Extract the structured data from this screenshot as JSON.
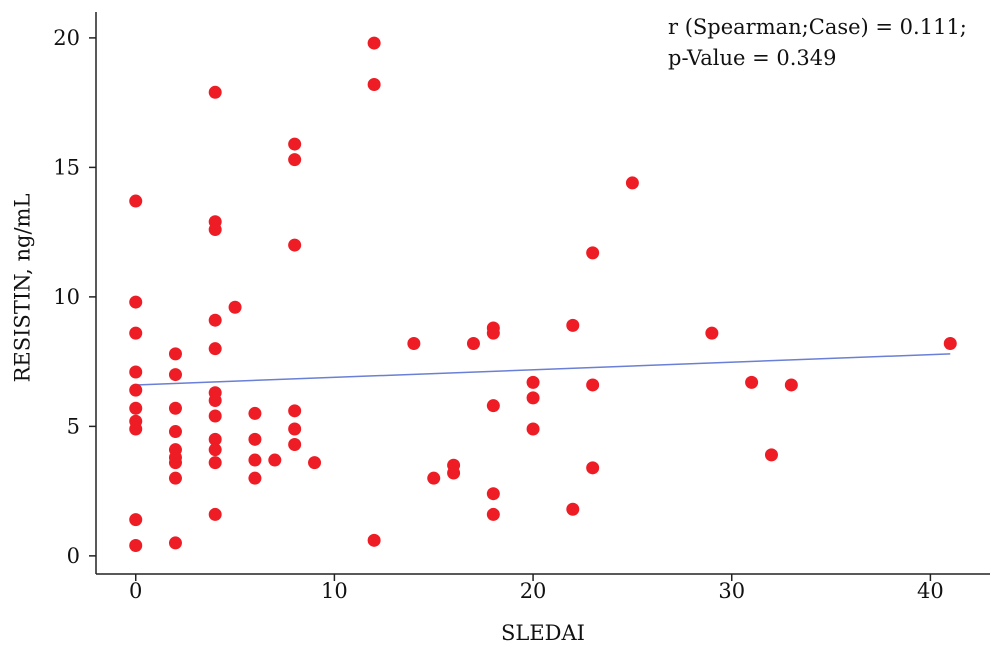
{
  "chart_data": {
    "type": "scatter",
    "xlabel": "SLEDAI",
    "ylabel": "RESISTIN, ng/mL",
    "xlim": [
      -2,
      43
    ],
    "ylim": [
      -0.7,
      21
    ],
    "xticks": [
      0,
      10,
      20,
      30,
      40
    ],
    "yticks": [
      0,
      5,
      10,
      15,
      20
    ],
    "annotations": [
      "r (Spearman;Case) = 0.111;",
      "p-Value = 0.349"
    ],
    "annotation_position": "top-right",
    "grid": false,
    "point_color": "#ee1c24",
    "fit_line_color": "#6a7fd6",
    "fit_line": {
      "x": [
        0,
        41
      ],
      "y": [
        6.6,
        7.8
      ]
    },
    "points": [
      {
        "x": 0,
        "y": 13.7
      },
      {
        "x": 0,
        "y": 9.8
      },
      {
        "x": 0,
        "y": 8.6
      },
      {
        "x": 0,
        "y": 7.1
      },
      {
        "x": 0,
        "y": 6.4
      },
      {
        "x": 0,
        "y": 5.7
      },
      {
        "x": 0,
        "y": 5.2
      },
      {
        "x": 0,
        "y": 4.9
      },
      {
        "x": 0,
        "y": 1.4
      },
      {
        "x": 0,
        "y": 0.4
      },
      {
        "x": 2,
        "y": 7.8
      },
      {
        "x": 2,
        "y": 7.0
      },
      {
        "x": 2,
        "y": 5.7
      },
      {
        "x": 2,
        "y": 4.8
      },
      {
        "x": 2,
        "y": 4.1
      },
      {
        "x": 2,
        "y": 3.8
      },
      {
        "x": 2,
        "y": 3.6
      },
      {
        "x": 2,
        "y": 3.0
      },
      {
        "x": 2,
        "y": 0.5
      },
      {
        "x": 4,
        "y": 17.9
      },
      {
        "x": 4,
        "y": 12.9
      },
      {
        "x": 4,
        "y": 12.6
      },
      {
        "x": 4,
        "y": 9.1
      },
      {
        "x": 4,
        "y": 8.0
      },
      {
        "x": 4,
        "y": 6.3
      },
      {
        "x": 4,
        "y": 6.0
      },
      {
        "x": 4,
        "y": 5.4
      },
      {
        "x": 4,
        "y": 4.5
      },
      {
        "x": 4,
        "y": 4.1
      },
      {
        "x": 4,
        "y": 3.6
      },
      {
        "x": 4,
        "y": 1.6
      },
      {
        "x": 5,
        "y": 9.6
      },
      {
        "x": 6,
        "y": 5.5
      },
      {
        "x": 6,
        "y": 4.5
      },
      {
        "x": 6,
        "y": 3.7
      },
      {
        "x": 6,
        "y": 3.0
      },
      {
        "x": 7,
        "y": 3.7
      },
      {
        "x": 8,
        "y": 15.9
      },
      {
        "x": 8,
        "y": 15.3
      },
      {
        "x": 8,
        "y": 12.0
      },
      {
        "x": 8,
        "y": 5.6
      },
      {
        "x": 8,
        "y": 4.9
      },
      {
        "x": 8,
        "y": 4.3
      },
      {
        "x": 9,
        "y": 3.6
      },
      {
        "x": 12,
        "y": 19.8
      },
      {
        "x": 12,
        "y": 18.2
      },
      {
        "x": 12,
        "y": 0.6
      },
      {
        "x": 14,
        "y": 8.2
      },
      {
        "x": 15,
        "y": 3.0
      },
      {
        "x": 16,
        "y": 3.5
      },
      {
        "x": 16,
        "y": 3.2
      },
      {
        "x": 17,
        "y": 8.2
      },
      {
        "x": 18,
        "y": 8.8
      },
      {
        "x": 18,
        "y": 8.6
      },
      {
        "x": 18,
        "y": 5.8
      },
      {
        "x": 18,
        "y": 2.4
      },
      {
        "x": 18,
        "y": 1.6
      },
      {
        "x": 20,
        "y": 6.7
      },
      {
        "x": 20,
        "y": 6.1
      },
      {
        "x": 20,
        "y": 4.9
      },
      {
        "x": 22,
        "y": 8.9
      },
      {
        "x": 22,
        "y": 1.8
      },
      {
        "x": 23,
        "y": 11.7
      },
      {
        "x": 23,
        "y": 6.6
      },
      {
        "x": 23,
        "y": 3.4
      },
      {
        "x": 25,
        "y": 14.4
      },
      {
        "x": 29,
        "y": 8.6
      },
      {
        "x": 31,
        "y": 6.7
      },
      {
        "x": 32,
        "y": 3.9
      },
      {
        "x": 33,
        "y": 6.6
      },
      {
        "x": 41,
        "y": 8.2
      }
    ]
  }
}
